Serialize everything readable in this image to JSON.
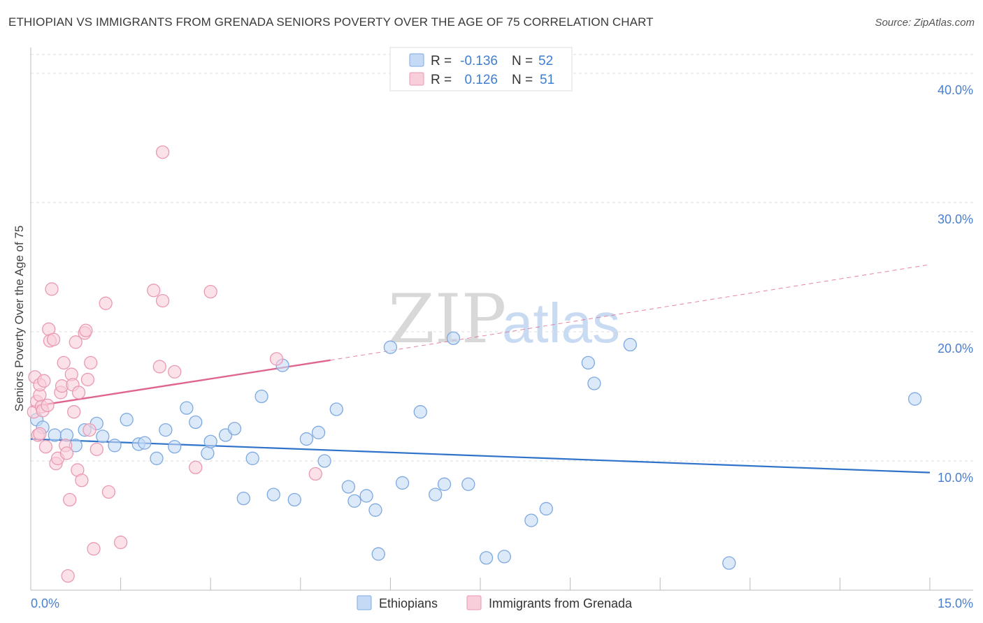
{
  "title": "ETHIOPIAN VS IMMIGRANTS FROM GRENADA SENIORS POVERTY OVER THE AGE OF 75 CORRELATION CHART",
  "source": "Source: ZipAtlas.com",
  "watermark": {
    "zip": "ZIP",
    "atlas": "atlas"
  },
  "legend": {
    "rows": [
      {
        "r_label": "R =",
        "r_value": "-0.136",
        "n_label": "N =",
        "n_value": "52"
      },
      {
        "r_label": "R =",
        "r_value": "0.126",
        "n_label": "N =",
        "n_value": "51"
      }
    ]
  },
  "bottom_legend": [
    "Ethiopians",
    "Immigrants from Grenada"
  ],
  "colors": {
    "blue_fill": "#c5daf5",
    "blue_stroke": "#7ea9e0",
    "blue_line": "#2f72c9",
    "pink_fill": "#f8cedb",
    "pink_stroke": "#e99ab2",
    "pink_line": "#e0658e",
    "grid": "#dddddd",
    "axis_label": "#4a7fd0"
  },
  "chart_data": {
    "type": "scatter",
    "title": "ETHIOPIAN VS IMMIGRANTS FROM GRENADA SENIORS POVERTY OVER THE AGE OF 75 CORRELATION CHART",
    "xlabel": "",
    "ylabel": "Seniors Poverty Over the Age of 75",
    "xlim": [
      0,
      15
    ],
    "ylim": [
      0,
      42
    ],
    "x_tick_labels": [
      "0.0%",
      "15.0%"
    ],
    "y_ticks": [
      10,
      20,
      30,
      40
    ],
    "y_tick_labels": [
      "10.0%",
      "20.0%",
      "30.0%",
      "40.0%"
    ],
    "grid": true,
    "legend_position": "top-center",
    "series": [
      {
        "name": "Ethiopians",
        "r": -0.136,
        "n": 52,
        "trend": {
          "x": [
            0,
            15
          ],
          "y": [
            11.7,
            9.1
          ],
          "extended": false
        },
        "points": [
          [
            0.1,
            13.2
          ],
          [
            0.2,
            12.6
          ],
          [
            0.4,
            12.0
          ],
          [
            0.6,
            12.0
          ],
          [
            0.75,
            11.2
          ],
          [
            0.9,
            12.4
          ],
          [
            1.1,
            12.9
          ],
          [
            1.2,
            11.9
          ],
          [
            1.4,
            11.2
          ],
          [
            1.6,
            13.2
          ],
          [
            1.8,
            11.3
          ],
          [
            1.9,
            11.4
          ],
          [
            2.1,
            10.2
          ],
          [
            2.25,
            12.4
          ],
          [
            2.4,
            11.1
          ],
          [
            2.6,
            14.1
          ],
          [
            2.75,
            13.0
          ],
          [
            2.95,
            10.6
          ],
          [
            3.0,
            11.5
          ],
          [
            3.25,
            12.0
          ],
          [
            3.4,
            12.5
          ],
          [
            3.55,
            7.1
          ],
          [
            3.7,
            10.2
          ],
          [
            3.85,
            15.0
          ],
          [
            4.05,
            7.4
          ],
          [
            4.2,
            17.4
          ],
          [
            4.4,
            7.0
          ],
          [
            4.6,
            11.7
          ],
          [
            4.8,
            12.2
          ],
          [
            4.9,
            10.0
          ],
          [
            5.1,
            14.0
          ],
          [
            5.3,
            8.0
          ],
          [
            5.4,
            6.9
          ],
          [
            5.6,
            7.3
          ],
          [
            5.75,
            6.2
          ],
          [
            5.8,
            2.8
          ],
          [
            6.0,
            18.8
          ],
          [
            6.2,
            8.3
          ],
          [
            6.5,
            13.8
          ],
          [
            6.75,
            7.4
          ],
          [
            6.9,
            8.2
          ],
          [
            7.05,
            19.5
          ],
          [
            7.3,
            8.2
          ],
          [
            7.6,
            2.5
          ],
          [
            7.9,
            2.6
          ],
          [
            8.35,
            5.4
          ],
          [
            8.6,
            6.3
          ],
          [
            9.3,
            17.6
          ],
          [
            9.4,
            16.0
          ],
          [
            10.0,
            19.0
          ],
          [
            11.65,
            2.1
          ],
          [
            14.75,
            14.8
          ]
        ]
      },
      {
        "name": "Immigrants from Grenada",
        "r": 0.126,
        "n": 51,
        "trend": {
          "x": [
            0,
            5
          ],
          "y": [
            14.2,
            17.8
          ],
          "extended_x": [
            5,
            15
          ],
          "extended_y": [
            17.8,
            25.2
          ]
        },
        "points": [
          [
            0.05,
            13.8
          ],
          [
            0.07,
            16.5
          ],
          [
            0.1,
            14.6
          ],
          [
            0.12,
            12.0
          ],
          [
            0.15,
            15.1
          ],
          [
            0.15,
            15.9
          ],
          [
            0.18,
            14.2
          ],
          [
            0.2,
            13.9
          ],
          [
            0.22,
            16.2
          ],
          [
            0.25,
            11.1
          ],
          [
            0.28,
            14.3
          ],
          [
            0.3,
            20.2
          ],
          [
            0.32,
            19.3
          ],
          [
            0.35,
            23.3
          ],
          [
            0.38,
            19.4
          ],
          [
            0.42,
            9.8
          ],
          [
            0.45,
            10.2
          ],
          [
            0.5,
            15.3
          ],
          [
            0.52,
            15.8
          ],
          [
            0.55,
            17.6
          ],
          [
            0.58,
            11.2
          ],
          [
            0.6,
            10.6
          ],
          [
            0.62,
            1.1
          ],
          [
            0.65,
            7.0
          ],
          [
            0.68,
            16.7
          ],
          [
            0.7,
            15.9
          ],
          [
            0.72,
            13.8
          ],
          [
            0.75,
            19.2
          ],
          [
            0.78,
            9.3
          ],
          [
            0.8,
            15.3
          ],
          [
            0.85,
            8.5
          ],
          [
            0.9,
            19.9
          ],
          [
            0.92,
            20.1
          ],
          [
            0.95,
            16.3
          ],
          [
            0.98,
            12.4
          ],
          [
            1.0,
            17.6
          ],
          [
            1.05,
            3.2
          ],
          [
            1.1,
            10.9
          ],
          [
            1.25,
            22.2
          ],
          [
            1.3,
            7.6
          ],
          [
            1.5,
            3.7
          ],
          [
            2.05,
            23.2
          ],
          [
            2.15,
            17.3
          ],
          [
            2.2,
            22.4
          ],
          [
            2.2,
            33.9
          ],
          [
            2.4,
            16.9
          ],
          [
            2.75,
            9.5
          ],
          [
            3.0,
            23.1
          ],
          [
            4.1,
            17.9
          ],
          [
            4.75,
            9.0
          ],
          [
            0.15,
            12.1
          ]
        ]
      }
    ]
  }
}
